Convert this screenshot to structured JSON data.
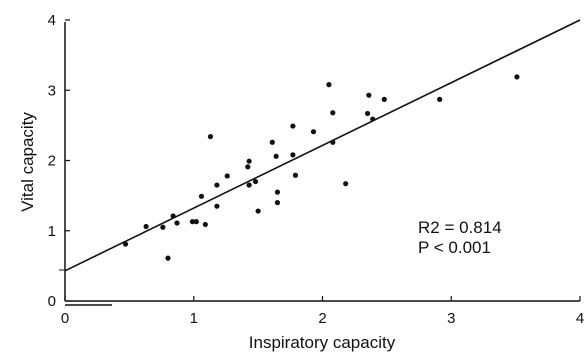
{
  "chart_data": {
    "type": "scatter",
    "title": "",
    "xlabel": "Inspiratory capacity",
    "ylabel": "Vital capacity",
    "xlim": [
      0,
      4
    ],
    "ylim": [
      0,
      4
    ],
    "x_ticks": [
      "0",
      "1",
      "2",
      "3",
      "4"
    ],
    "y_ticks": [
      "0",
      "1",
      "2",
      "3",
      "4"
    ],
    "grid": false,
    "legend": "none",
    "points": [
      {
        "x": 0.47,
        "y": 0.81
      },
      {
        "x": 0.63,
        "y": 1.06
      },
      {
        "x": 0.76,
        "y": 1.05
      },
      {
        "x": 0.8,
        "y": 0.61
      },
      {
        "x": 0.84,
        "y": 1.21
      },
      {
        "x": 0.87,
        "y": 1.11
      },
      {
        "x": 0.99,
        "y": 1.13
      },
      {
        "x": 1.02,
        "y": 1.13
      },
      {
        "x": 1.06,
        "y": 1.49
      },
      {
        "x": 1.09,
        "y": 1.09
      },
      {
        "x": 1.13,
        "y": 2.34
      },
      {
        "x": 1.18,
        "y": 1.65
      },
      {
        "x": 1.18,
        "y": 1.35
      },
      {
        "x": 1.26,
        "y": 1.78
      },
      {
        "x": 1.42,
        "y": 1.91
      },
      {
        "x": 1.43,
        "y": 1.99
      },
      {
        "x": 1.43,
        "y": 1.65
      },
      {
        "x": 1.48,
        "y": 1.7
      },
      {
        "x": 1.5,
        "y": 1.28
      },
      {
        "x": 1.61,
        "y": 2.26
      },
      {
        "x": 1.64,
        "y": 2.06
      },
      {
        "x": 1.65,
        "y": 1.55
      },
      {
        "x": 1.65,
        "y": 1.4
      },
      {
        "x": 1.77,
        "y": 2.49
      },
      {
        "x": 1.77,
        "y": 2.08
      },
      {
        "x": 1.79,
        "y": 1.79
      },
      {
        "x": 1.93,
        "y": 2.41
      },
      {
        "x": 2.05,
        "y": 3.08
      },
      {
        "x": 2.08,
        "y": 2.68
      },
      {
        "x": 2.08,
        "y": 2.26
      },
      {
        "x": 2.18,
        "y": 1.67
      },
      {
        "x": 2.35,
        "y": 2.67
      },
      {
        "x": 2.36,
        "y": 2.93
      },
      {
        "x": 2.39,
        "y": 2.59
      },
      {
        "x": 2.48,
        "y": 2.87
      },
      {
        "x": 2.91,
        "y": 2.87
      },
      {
        "x": 3.51,
        "y": 3.19
      }
    ],
    "regression_line": {
      "x1": 0,
      "y1": 0.43,
      "x2": 4,
      "y2": 4.0
    },
    "annotations": [
      "R2 = 0.814",
      "P < 0.001"
    ]
  }
}
